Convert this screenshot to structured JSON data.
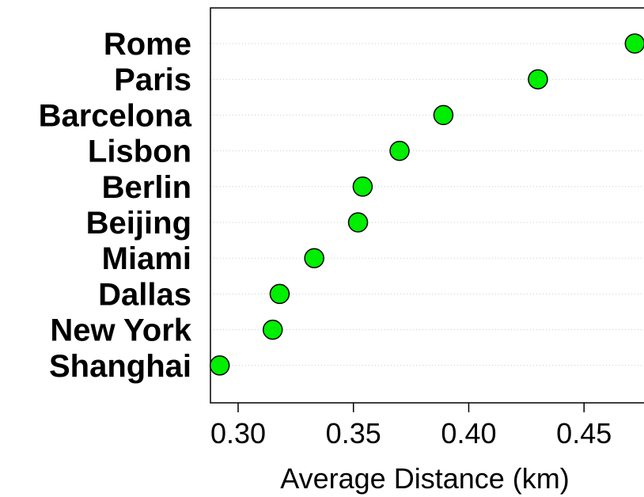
{
  "chart_data": {
    "type": "scatter",
    "categories": [
      "Rome",
      "Paris",
      "Barcelona",
      "Lisbon",
      "Berlin",
      "Beijing",
      "Miami",
      "Dallas",
      "New York",
      "Shanghai"
    ],
    "values": [
      0.472,
      0.43,
      0.389,
      0.37,
      0.354,
      0.352,
      0.333,
      0.318,
      0.315,
      0.292
    ],
    "title": "",
    "xlabel": "Average Distance (km)",
    "ylabel": "",
    "xlim": [
      0.288,
      0.476
    ],
    "xticks": [
      "0.30",
      "0.35",
      "0.40",
      "0.45"
    ],
    "grid": "dotted horizontal",
    "point_color": "#00ee00",
    "point_edge_color": "#000000"
  }
}
